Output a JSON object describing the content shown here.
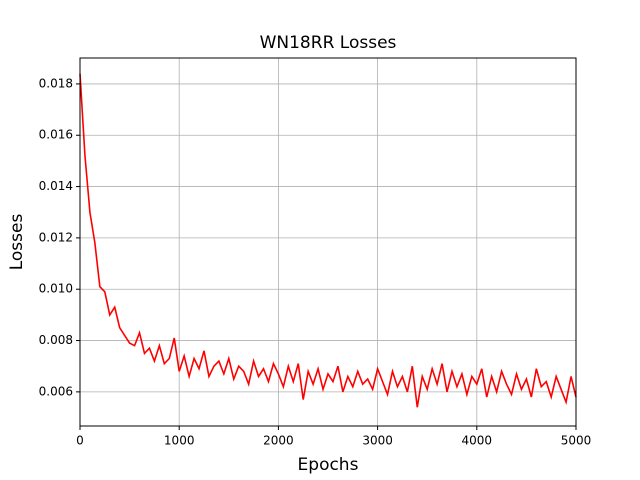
{
  "chart_data": {
    "type": "line",
    "title": "WN18RR Losses",
    "x_label": "Epochs",
    "y_label": "Losses",
    "x": [
      0,
      50,
      100,
      150,
      200,
      250,
      300,
      350,
      400,
      450,
      500,
      550,
      600,
      650,
      700,
      750,
      800,
      850,
      900,
      950,
      1000,
      1050,
      1100,
      1150,
      1200,
      1250,
      1300,
      1350,
      1400,
      1450,
      1500,
      1550,
      1600,
      1650,
      1700,
      1750,
      1800,
      1850,
      1900,
      1950,
      2000,
      2050,
      2100,
      2150,
      2200,
      2250,
      2300,
      2350,
      2400,
      2450,
      2500,
      2550,
      2600,
      2650,
      2700,
      2750,
      2800,
      2850,
      2900,
      2950,
      3000,
      3050,
      3100,
      3150,
      3200,
      3250,
      3300,
      3350,
      3400,
      3450,
      3500,
      3550,
      3600,
      3650,
      3700,
      3750,
      3800,
      3850,
      3900,
      3950,
      4000,
      4050,
      4100,
      4150,
      4200,
      4250,
      4300,
      4350,
      4400,
      4450,
      4500,
      4550,
      4600,
      4650,
      4700,
      4750,
      4800,
      4850,
      4900,
      4950,
      5000
    ],
    "series": [
      {
        "name": "Losses",
        "color": "#ff0000",
        "values": [
          0.0184,
          0.0152,
          0.013,
          0.0118,
          0.0101,
          0.0099,
          0.009,
          0.0093,
          0.0085,
          0.0082,
          0.0079,
          0.0078,
          0.0083,
          0.0075,
          0.0077,
          0.0072,
          0.0078,
          0.0071,
          0.0073,
          0.0081,
          0.0068,
          0.0074,
          0.0066,
          0.0073,
          0.0069,
          0.0076,
          0.0066,
          0.007,
          0.0072,
          0.0067,
          0.0073,
          0.0065,
          0.007,
          0.0068,
          0.0063,
          0.0072,
          0.0066,
          0.0069,
          0.0064,
          0.0071,
          0.0067,
          0.0062,
          0.007,
          0.0064,
          0.0071,
          0.0057,
          0.0068,
          0.0063,
          0.0069,
          0.0061,
          0.0067,
          0.0064,
          0.007,
          0.006,
          0.0066,
          0.0062,
          0.0068,
          0.0063,
          0.0065,
          0.0061,
          0.0069,
          0.0064,
          0.0059,
          0.0068,
          0.0062,
          0.0066,
          0.006,
          0.007,
          0.0054,
          0.0066,
          0.0061,
          0.0069,
          0.0063,
          0.0071,
          0.006,
          0.0068,
          0.0062,
          0.0067,
          0.0059,
          0.0066,
          0.0063,
          0.0069,
          0.0058,
          0.0066,
          0.006,
          0.0068,
          0.0063,
          0.0059,
          0.0067,
          0.0061,
          0.0065,
          0.0058,
          0.0069,
          0.0062,
          0.0064,
          0.0058,
          0.0066,
          0.0061,
          0.0056,
          0.0066,
          0.0058
        ]
      }
    ],
    "xlim": [
      0,
      5000
    ],
    "xticks": [
      0,
      1000,
      2000,
      3000,
      4000,
      5000
    ],
    "ylim": [
      0.00467,
      0.01901
    ],
    "yticks": [
      0.006,
      0.008,
      {
        "value": 0.01,
        "label": "0.010"
      },
      0.012,
      0.014,
      0.016,
      0.018
    ],
    "grid": true
  }
}
